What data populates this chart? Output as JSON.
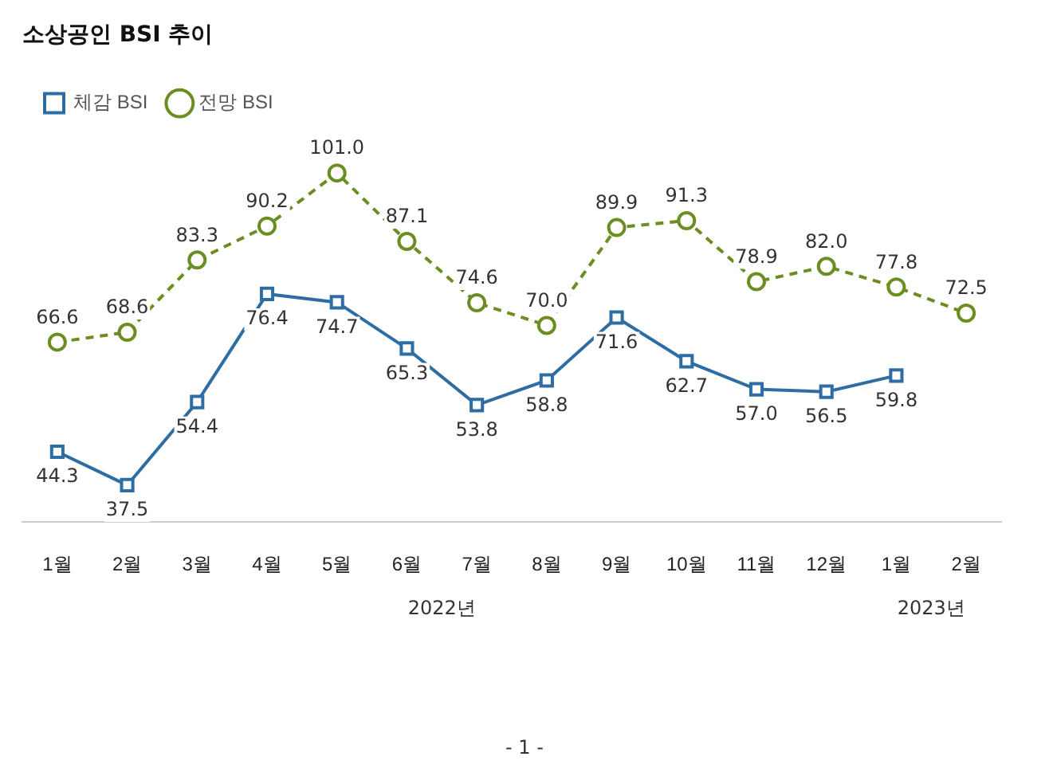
{
  "chart_data": {
    "type": "line",
    "title": "소상공인 BSI 추이",
    "categories": [
      "1월",
      "2월",
      "3월",
      "4월",
      "5월",
      "6월",
      "7월",
      "8월",
      "9월",
      "10월",
      "11월",
      "12월",
      "1월",
      "2월"
    ],
    "series": [
      {
        "name": "체감 BSI",
        "color": "#2e6da4",
        "marker": "square",
        "line_style": "solid",
        "values": [
          44.3,
          37.5,
          54.4,
          76.4,
          74.7,
          65.3,
          53.8,
          58.8,
          71.6,
          62.7,
          57.0,
          56.5,
          59.8,
          null
        ],
        "value_labels": [
          "44.3",
          "37.5",
          "54.4",
          "76.4",
          "74.7",
          "65.3",
          "53.8",
          "58.8",
          "71.6",
          "62.7",
          "57.0",
          "56.5",
          "59.8",
          null
        ]
      },
      {
        "name": "전망 BSI",
        "color": "#6b8e23",
        "marker": "circle",
        "line_style": "dashed",
        "values": [
          66.6,
          68.6,
          83.3,
          90.2,
          101.0,
          87.1,
          74.6,
          70.0,
          89.9,
          91.3,
          78.9,
          82.0,
          77.8,
          72.5
        ],
        "value_labels": [
          "66.6",
          "68.6",
          "83.3",
          "90.2",
          "101.0",
          "87.1",
          "74.6",
          "70.0",
          "89.9",
          "91.3",
          "78.9",
          "82.0",
          "77.8",
          "72.5"
        ]
      }
    ],
    "legend": "top left",
    "grid": false,
    "annotations": [
      "2022년",
      "2023년",
      "- 1 -"
    ]
  }
}
